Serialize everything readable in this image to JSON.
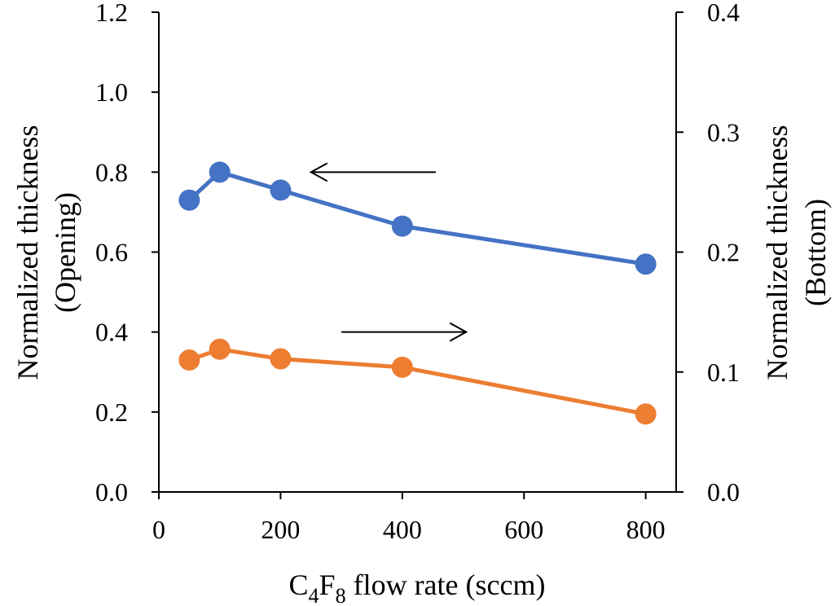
{
  "chart_data": {
    "type": "line",
    "x": [
      50,
      100,
      200,
      400,
      800
    ],
    "xlim": [
      0,
      850
    ],
    "x_ticks": [
      0,
      200,
      400,
      600,
      800
    ],
    "x_tick_labels": [
      "0",
      "200",
      "400",
      "600",
      "800"
    ],
    "xlabel": {
      "prefix": "C",
      "sub1": "4",
      "mid": "F",
      "sub2": "8",
      "suffix": " flow rate (sccm)"
    },
    "y_left": {
      "lim": [
        0,
        1.2
      ],
      "ticks": [
        0,
        0.2,
        0.4,
        0.6,
        0.8,
        1.0,
        1.2
      ],
      "tick_labels": [
        "0.0",
        "0.2",
        "0.4",
        "0.6",
        "0.8",
        "1.0",
        "1.2"
      ],
      "label_line1": "Normalized thickness",
      "label_line2": "(Opening)"
    },
    "y_right": {
      "lim": [
        0,
        0.4
      ],
      "ticks": [
        0,
        0.1,
        0.2,
        0.3,
        0.4
      ],
      "tick_labels": [
        "0.0",
        "0.1",
        "0.2",
        "0.3",
        "0.4"
      ],
      "label_line1": "Normalized thickness",
      "label_line2": "(Bottom)"
    },
    "series": [
      {
        "name": "Opening",
        "axis": "left",
        "color": "#4472C4",
        "values": [
          0.73,
          0.8,
          0.755,
          0.665,
          0.57
        ]
      },
      {
        "name": "Bottom",
        "axis": "right",
        "color": "#ED7D31",
        "values": [
          0.11,
          0.119,
          0.111,
          0.104,
          0.065
        ]
      }
    ],
    "annotations": [
      {
        "name": "opening-axis-arrow",
        "direction": "left",
        "x_from": 455,
        "x_to": 250,
        "y": 0.8,
        "axis": "left"
      },
      {
        "name": "bottom-axis-arrow",
        "direction": "right",
        "x_from": 300,
        "x_to": 505,
        "y": 0.4,
        "axis": "left"
      }
    ],
    "grid": false
  }
}
